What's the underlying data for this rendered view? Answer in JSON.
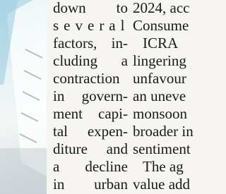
{
  "article": {
    "column_1": [
      "down to",
      "several",
      "factors, in-",
      "cluding a",
      "contraction",
      "in govern-",
      "ment capi-",
      "tal expen-",
      "diture and",
      "a decline",
      "in urban"
    ],
    "column_2": [
      "2024, acc",
      "Consume",
      "ICRA",
      "lingering",
      "unfavour",
      "an uneve",
      "monsoon",
      "broader in",
      "sentiment",
      "The ag",
      "value add"
    ]
  }
}
